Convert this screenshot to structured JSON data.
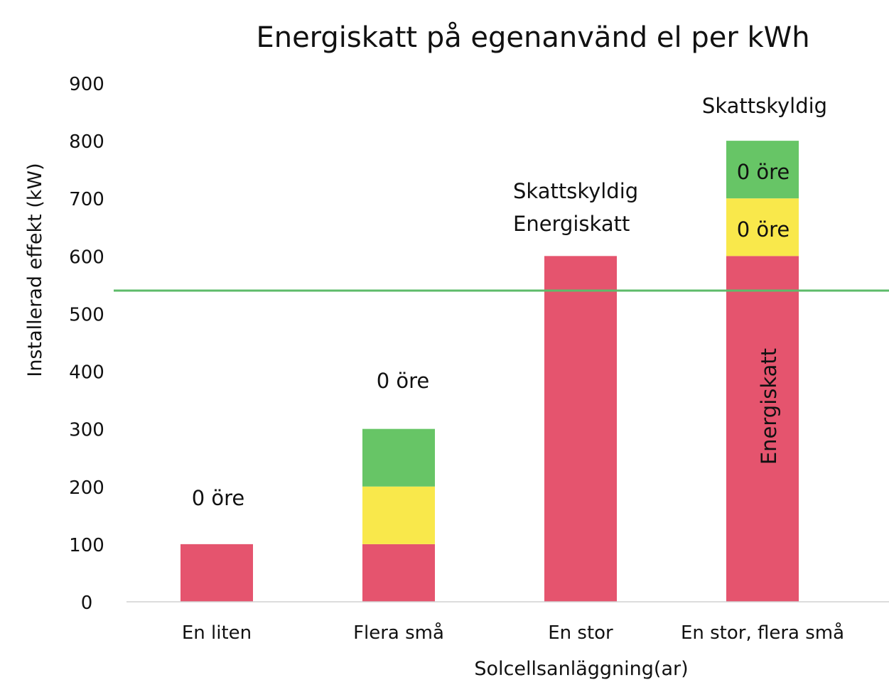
{
  "chart_data": {
    "type": "bar",
    "stacked": true,
    "title": "Energiskatt på egenanvänd el per kWh",
    "xlabel": "Solcellsanläggning(ar)",
    "ylabel": "Installerad effekt (kW)",
    "ylim": [
      0,
      900
    ],
    "yticks": [
      0,
      100,
      200,
      300,
      400,
      500,
      600,
      700,
      800,
      900
    ],
    "grid": false,
    "legend": "none",
    "categories": [
      "En liten",
      "Flera små",
      "En stor",
      "En stor, flera små"
    ],
    "series": [
      {
        "color": "#E5546E",
        "values": [
          100,
          100,
          600,
          600
        ]
      },
      {
        "color": "#F9E84B",
        "values": [
          0,
          100,
          0,
          100
        ]
      },
      {
        "color": "#67C566",
        "values": [
          0,
          100,
          0,
          100
        ]
      }
    ],
    "reference_line": {
      "value": 540,
      "color": "#5DBB6A"
    },
    "annotations": {
      "liten_above": "0 öre",
      "flera_above": "0 öre",
      "stor_line1": "Skattskyldig",
      "stor_line2": "Energiskatt",
      "combo_above": "Skattskyldig",
      "combo_green": "0 öre",
      "combo_yellow": "0 öre",
      "combo_red": "Energiskatt"
    }
  }
}
